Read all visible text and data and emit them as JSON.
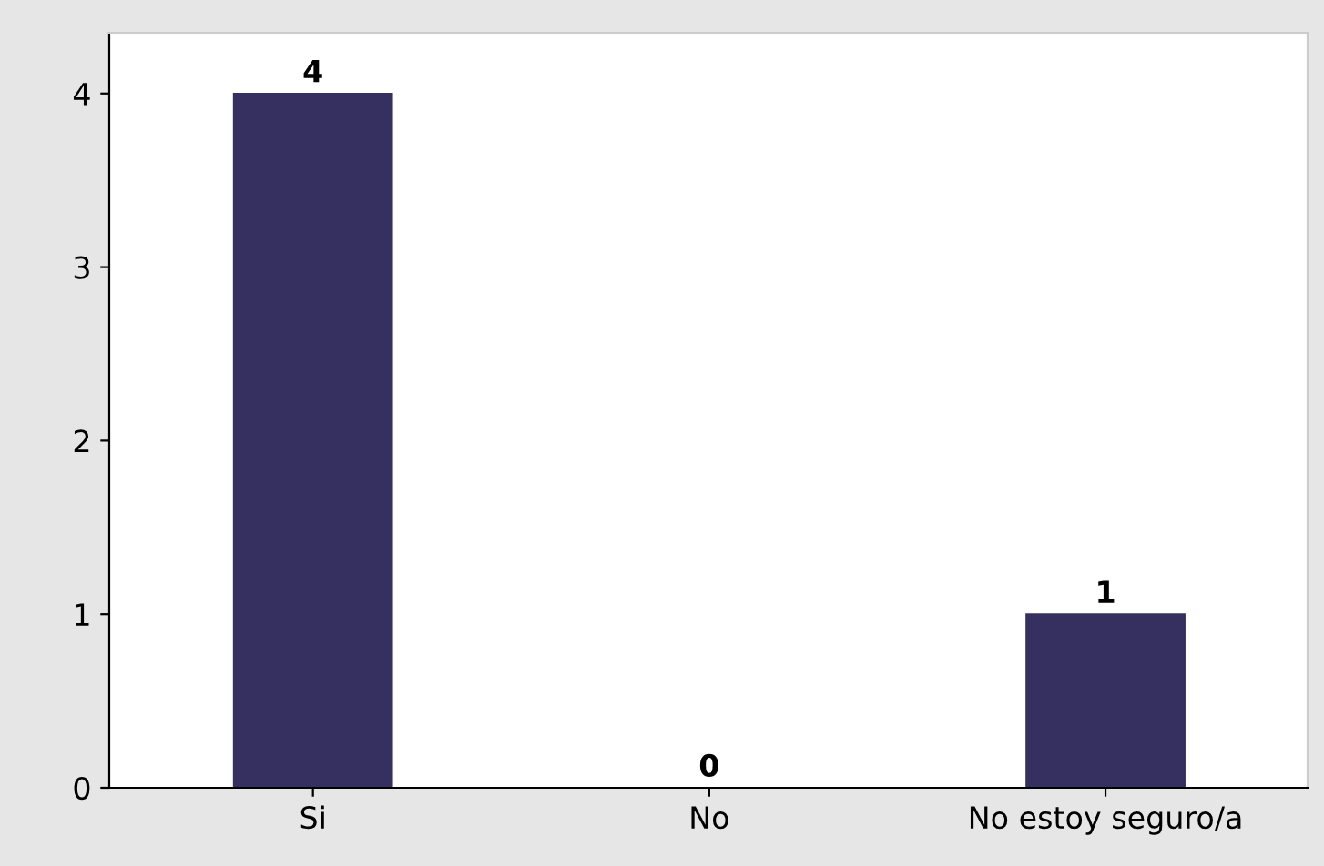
{
  "chart_data": {
    "type": "bar",
    "categories": [
      "Si",
      "No",
      "No estoy seguro/a"
    ],
    "values": [
      4,
      0,
      1
    ],
    "color": "#363060",
    "ylim": [
      0,
      4.35
    ],
    "yticks": [
      0,
      1,
      2,
      3,
      4
    ],
    "grid": false,
    "data_labels": true
  }
}
